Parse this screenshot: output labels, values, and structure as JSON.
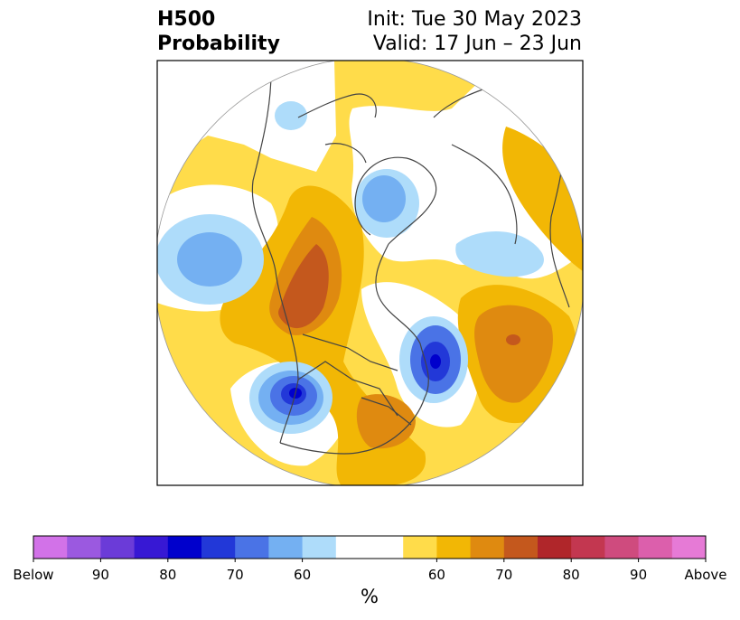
{
  "title": {
    "left_line1": "H500",
    "left_line2": "Probability",
    "right_line1": "Init: Tue 30 May 2023",
    "right_line2": "Valid: 17 Jun – 23 Jun"
  },
  "colorbar": {
    "below_colors": [
      "#d272e8",
      "#9b59e0",
      "#6b3bd8",
      "#3718d4",
      "#0000cc",
      "#2238d8",
      "#4a73e6",
      "#74b0f2",
      "#aedcfa"
    ],
    "neutral_color": "#ffffff",
    "above_colors": [
      "#ffdc4a",
      "#f2b705",
      "#df8a10",
      "#c4581d",
      "#b0262a",
      "#c33750",
      "#cf4b7e",
      "#dc5fac",
      "#e67ad6"
    ],
    "tick_labels": [
      "Below",
      "90",
      "80",
      "70",
      "60",
      "60",
      "70",
      "80",
      "90",
      "Above"
    ],
    "unit": "%"
  },
  "map": {
    "projection": "polar-stereographic",
    "region": "North America / Northern Hemisphere"
  }
}
